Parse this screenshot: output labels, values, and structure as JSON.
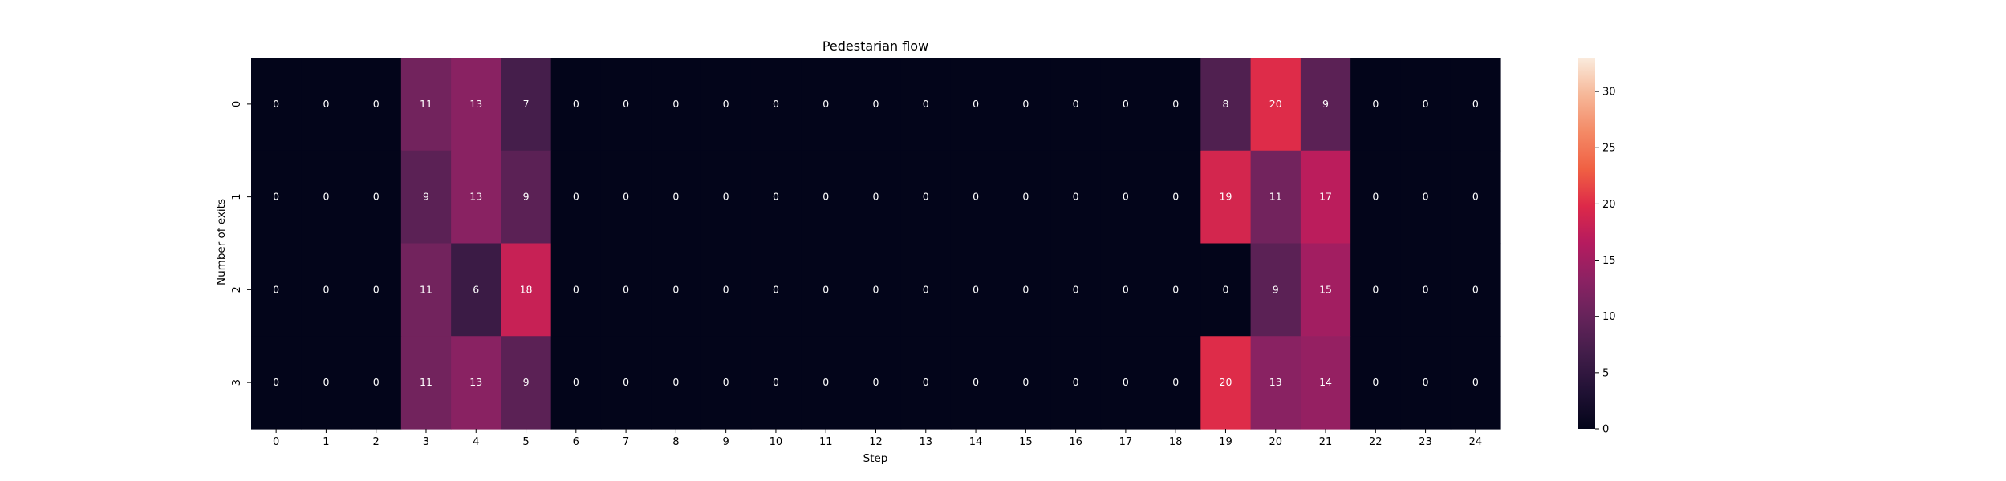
{
  "chart_data": {
    "type": "heatmap",
    "title": "Pedestarian flow",
    "xlabel": "Step",
    "ylabel": "Number of exits",
    "x_categories": [
      "0",
      "1",
      "2",
      "3",
      "4",
      "5",
      "6",
      "7",
      "8",
      "9",
      "10",
      "11",
      "12",
      "13",
      "14",
      "15",
      "16",
      "17",
      "18",
      "19",
      "20",
      "21",
      "22",
      "23",
      "24"
    ],
    "y_categories": [
      "0",
      "1",
      "2",
      "3"
    ],
    "values": [
      [
        0,
        0,
        0,
        11,
        13,
        7,
        0,
        0,
        0,
        0,
        0,
        0,
        0,
        0,
        0,
        0,
        0,
        0,
        0,
        8,
        20,
        9,
        0,
        0,
        0
      ],
      [
        0,
        0,
        0,
        9,
        13,
        9,
        0,
        0,
        0,
        0,
        0,
        0,
        0,
        0,
        0,
        0,
        0,
        0,
        0,
        19,
        11,
        17,
        0,
        0,
        0
      ],
      [
        0,
        0,
        0,
        11,
        6,
        18,
        0,
        0,
        0,
        0,
        0,
        0,
        0,
        0,
        0,
        0,
        0,
        0,
        0,
        0,
        9,
        15,
        0,
        0,
        0
      ],
      [
        0,
        0,
        0,
        11,
        13,
        9,
        0,
        0,
        0,
        0,
        0,
        0,
        0,
        0,
        0,
        0,
        0,
        0,
        0,
        20,
        13,
        14,
        0,
        0,
        0
      ]
    ],
    "colorbar": {
      "min": 0,
      "max": 33,
      "ticks": [
        0,
        5,
        10,
        15,
        20,
        25,
        30
      ]
    },
    "colormap": "rocket",
    "annotations": true,
    "grid": false,
    "legend": "colorbar-right"
  }
}
